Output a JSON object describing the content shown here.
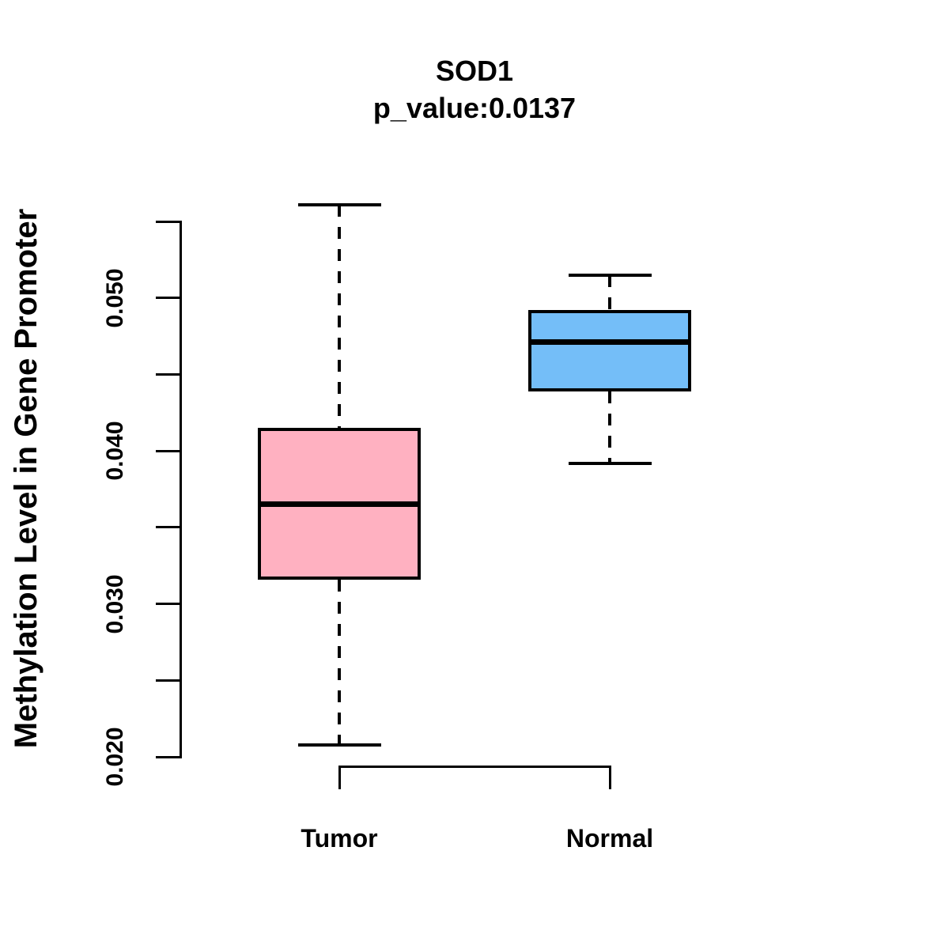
{
  "chart_data": {
    "type": "boxplot",
    "title": "SOD1",
    "subtitle": "p_value:0.0137",
    "ylabel": "Methylation Level in Gene Promoter",
    "xlabel": "",
    "categories": [
      "Tumor",
      "Normal"
    ],
    "series": [
      {
        "name": "Tumor",
        "color": "#FFB1C1",
        "whisker_low": 0.0208,
        "q1": 0.0316,
        "median": 0.0365,
        "q3": 0.0415,
        "whisker_high": 0.0561
      },
      {
        "name": "Normal",
        "color": "#74BEF8",
        "whisker_low": 0.0392,
        "q1": 0.0439,
        "median": 0.0471,
        "q3": 0.0492,
        "whisker_high": 0.0515
      }
    ],
    "ylim": [
      0.02,
      0.055
    ],
    "y_ticks": [
      {
        "value": 0.02,
        "label": "0.020"
      },
      {
        "value": 0.025,
        "label": ""
      },
      {
        "value": 0.03,
        "label": "0.030"
      },
      {
        "value": 0.035,
        "label": ""
      },
      {
        "value": 0.04,
        "label": "0.040"
      },
      {
        "value": 0.045,
        "label": ""
      },
      {
        "value": 0.05,
        "label": "0.050"
      },
      {
        "value": 0.055,
        "label": ""
      }
    ],
    "grid": false,
    "legend": false,
    "stroke_color": "#000000",
    "background_color": "#FFFFFF"
  }
}
